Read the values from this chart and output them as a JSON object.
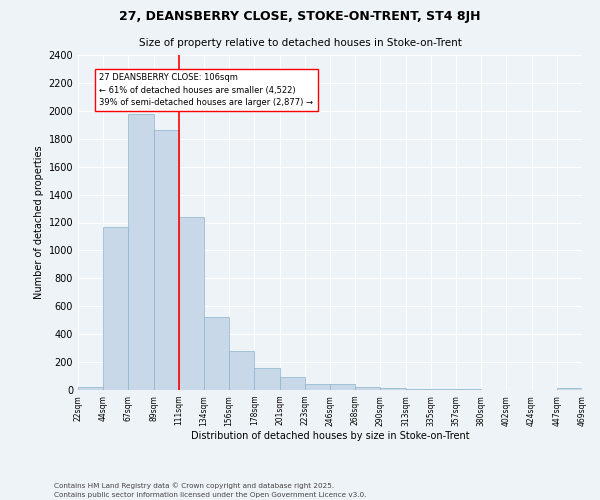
{
  "title1": "27, DEANSBERRY CLOSE, STOKE-ON-TRENT, ST4 8JH",
  "title2": "Size of property relative to detached houses in Stoke-on-Trent",
  "xlabel": "Distribution of detached houses by size in Stoke-on-Trent",
  "ylabel": "Number of detached properties",
  "bar_values": [
    25,
    1170,
    1980,
    1860,
    1240,
    520,
    280,
    155,
    95,
    45,
    45,
    20,
    15,
    10,
    5,
    5,
    3,
    3,
    3,
    15
  ],
  "bin_labels": [
    "22sqm",
    "44sqm",
    "67sqm",
    "89sqm",
    "111sqm",
    "134sqm",
    "156sqm",
    "178sqm",
    "201sqm",
    "223sqm",
    "246sqm",
    "268sqm",
    "290sqm",
    "313sqm",
    "335sqm",
    "357sqm",
    "380sqm",
    "402sqm",
    "424sqm",
    "447sqm",
    "469sqm"
  ],
  "bar_color": "#c8d8e8",
  "bar_edge_color": "#8ab4cc",
  "vline_color": "red",
  "annotation_text": "27 DEANSBERRY CLOSE: 106sqm\n← 61% of detached houses are smaller (4,522)\n39% of semi-detached houses are larger (2,877) →",
  "annotation_box_color": "white",
  "annotation_box_edge": "red",
  "ylim": [
    0,
    2400
  ],
  "yticks": [
    0,
    200,
    400,
    600,
    800,
    1000,
    1200,
    1400,
    1600,
    1800,
    2000,
    2200,
    2400
  ],
  "bg_color": "#eef3f8",
  "grid_color": "white",
  "footer1": "Contains HM Land Registry data © Crown copyright and database right 2025.",
  "footer2": "Contains public sector information licensed under the Open Government Licence v3.0."
}
